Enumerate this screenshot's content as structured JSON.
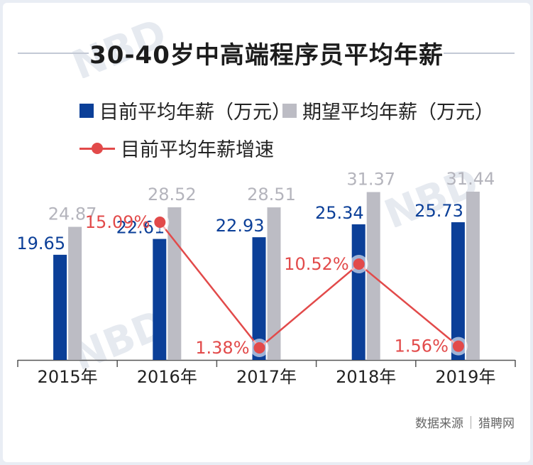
{
  "title": "30-40岁中高端程序员平均年薪",
  "legend": {
    "current": "目前平均年薪（万元）",
    "expected": "期望平均年薪（万元）",
    "growth": "目前平均年薪增速"
  },
  "source": {
    "label": "数据来源",
    "org": "猎聘网"
  },
  "colors": {
    "current": "#0b3f98",
    "expected": "#bcbcc4",
    "growth": "#e24a4a",
    "axis": "#555555"
  },
  "chart_data": {
    "type": "bar",
    "title": "30-40岁中高端程序员平均年薪",
    "categories": [
      "2015年",
      "2016年",
      "2017年",
      "2018年",
      "2019年"
    ],
    "series": [
      {
        "name": "目前平均年薪（万元）",
        "type": "bar",
        "values": [
          19.65,
          22.61,
          22.93,
          25.34,
          25.73
        ],
        "labels": [
          "19.65",
          "22.61",
          "22.93",
          "25.34",
          "25.73"
        ]
      },
      {
        "name": "期望平均年薪（万元）",
        "type": "bar",
        "values": [
          24.87,
          28.52,
          28.51,
          31.37,
          31.44
        ],
        "labels": [
          "24.87",
          "28.52",
          "28.51",
          "31.37",
          "31.44"
        ]
      },
      {
        "name": "目前平均年薪增速",
        "type": "line",
        "values": [
          null,
          15.09,
          1.38,
          10.52,
          1.56
        ],
        "labels": [
          "",
          "15.09%",
          "1.38%",
          "10.52%",
          "1.56%"
        ]
      }
    ],
    "bar_range": [
      0,
      31.44
    ],
    "line_range": [
      1.38,
      15.09
    ],
    "grid": false,
    "legend_position": "top"
  }
}
